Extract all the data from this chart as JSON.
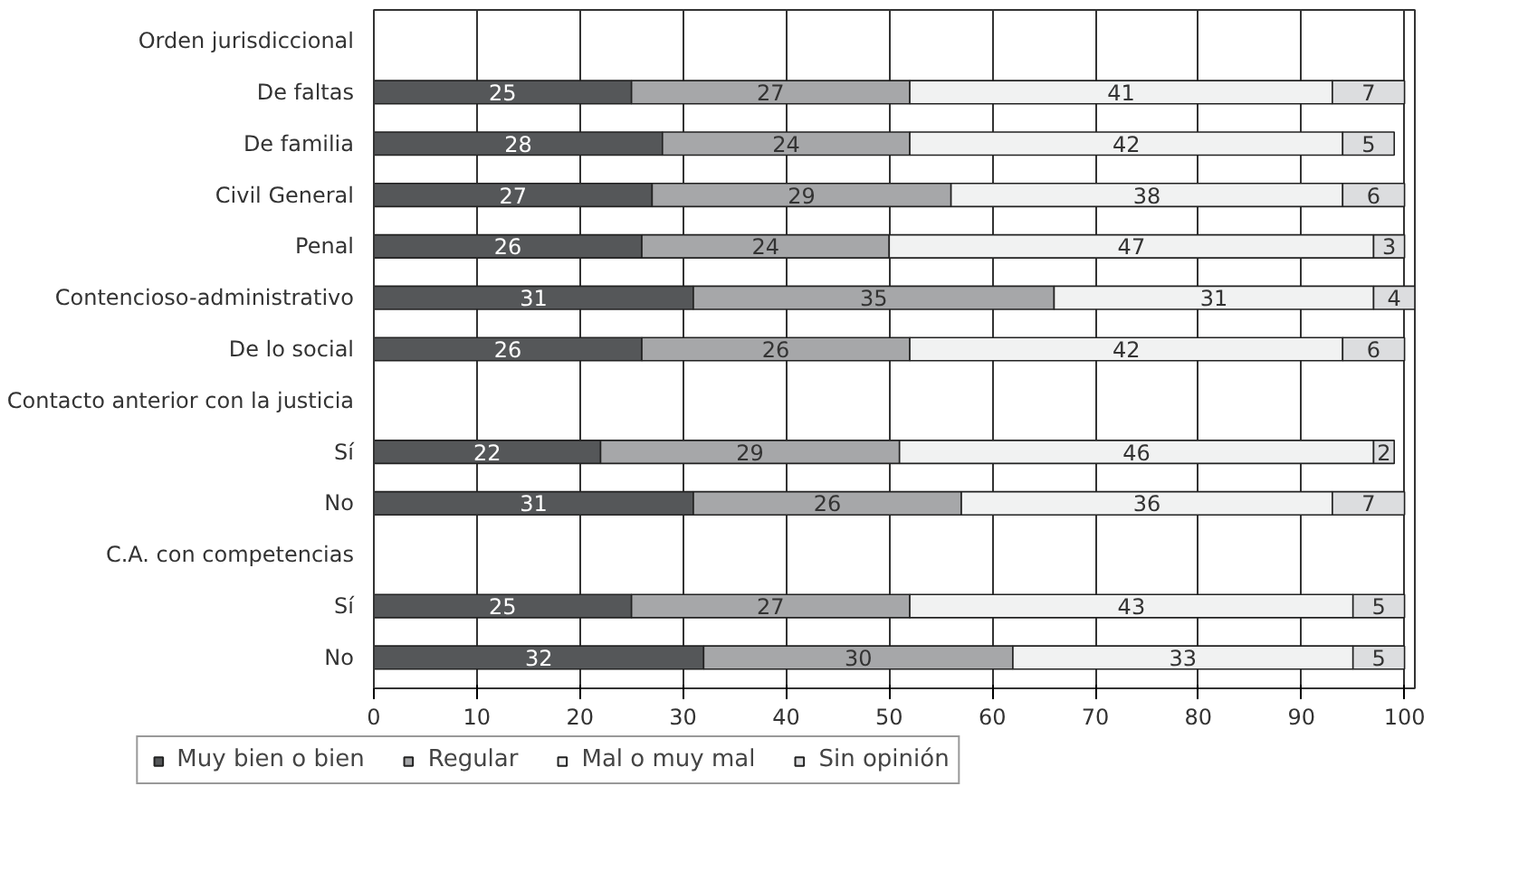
{
  "chart_data": {
    "type": "bar",
    "orientation": "horizontal",
    "stacked": true,
    "data_labels": true,
    "grid": "x",
    "legend": "bottom",
    "categories": [
      "Orden jurisdiccional",
      "De faltas",
      "De familia",
      "Civil General",
      "Penal",
      "Contencioso-administrativo",
      "De lo social",
      "Contacto anterior con la justicia",
      "Sí",
      "No",
      "C.A. con competencias",
      "Sí",
      "No"
    ],
    "xlim": [
      0,
      101
    ],
    "xticks": [
      0,
      10,
      20,
      30,
      40,
      50,
      60,
      70,
      80,
      90,
      100
    ],
    "series": [
      {
        "name": "Muy bien o bien",
        "color": "#555759",
        "values": [
          null,
          25,
          28,
          27,
          26,
          31,
          26,
          null,
          22,
          31,
          null,
          25,
          32
        ]
      },
      {
        "name": "Regular",
        "color": "#a6a7a9",
        "values": [
          null,
          27,
          24,
          29,
          24,
          35,
          26,
          null,
          29,
          26,
          null,
          27,
          30
        ]
      },
      {
        "name": "Mal o muy mal",
        "color": "#f1f2f2",
        "values": [
          null,
          41,
          42,
          38,
          47,
          31,
          42,
          null,
          46,
          36,
          null,
          43,
          33
        ]
      },
      {
        "name": "Sin opinión",
        "color": "#dcdddf",
        "values": [
          null,
          7,
          5,
          6,
          3,
          4,
          6,
          null,
          2,
          7,
          null,
          5,
          5
        ]
      }
    ]
  }
}
